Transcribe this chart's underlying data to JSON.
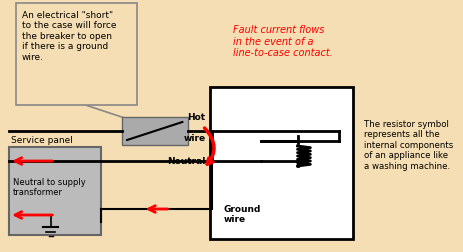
{
  "bg_color": "#F5DEB3",
  "callout_text": "An electrical \"short\"\nto the case will force\nthe breaker to open\nif there is a ground\nwire.",
  "fault_text": "Fault current flows\nin the event of a\nline-to-case contact.",
  "resistor_desc": "The resistor symbol\nrepresents all the\ninternal components\nof an appliance like\na washing machine.",
  "label_hot": "Hot\nwire",
  "label_neutral": "Neutral",
  "label_ground": "Ground\nwire",
  "label_service": "Service panel",
  "label_neutral_supply": "Neutral to supply\ntransformer"
}
